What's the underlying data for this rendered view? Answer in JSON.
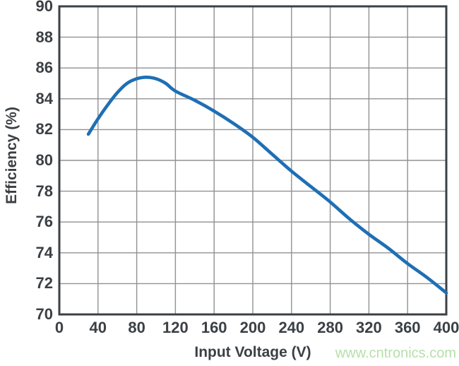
{
  "watermark": {
    "text": "www.cntronics.com",
    "color": "#b6dfaa"
  },
  "chart_data": {
    "type": "line",
    "title": "",
    "xlabel": "Input Voltage (V)",
    "ylabel": "Efficiency (%)",
    "xlim": [
      0,
      400
    ],
    "ylim": [
      70,
      90
    ],
    "xticks": [
      0,
      40,
      80,
      120,
      160,
      200,
      240,
      280,
      320,
      360,
      400
    ],
    "yticks": [
      70,
      72,
      74,
      76,
      78,
      80,
      82,
      84,
      86,
      88,
      90
    ],
    "grid": true,
    "legend": "none",
    "colors": {
      "line": "#1e6fb5",
      "grid": "#8f9193",
      "border": "#3b4045",
      "text": "#3b4045"
    },
    "series": [
      {
        "name": "efficiency-vs-input-voltage",
        "x": [
          30,
          40,
          50,
          60,
          70,
          80,
          90,
          100,
          110,
          120,
          140,
          160,
          180,
          200,
          220,
          240,
          260,
          280,
          300,
          320,
          340,
          360,
          380,
          400
        ],
        "y": [
          81.7,
          82.7,
          83.6,
          84.4,
          85.0,
          85.3,
          85.4,
          85.3,
          85.0,
          84.5,
          83.9,
          83.2,
          82.4,
          81.5,
          80.4,
          79.3,
          78.3,
          77.3,
          76.2,
          75.2,
          74.3,
          73.3,
          72.4,
          71.4
        ]
      }
    ]
  }
}
